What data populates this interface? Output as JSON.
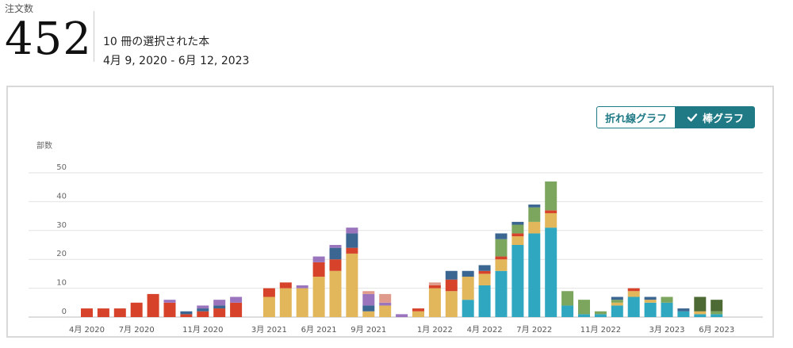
{
  "header": {
    "label": "注文数",
    "count": "452",
    "books_selected": "10 冊の選択された本",
    "date_range": "4月 9, 2020 - 6月 12, 2023"
  },
  "toggle": {
    "line_label": "折れ線グラフ",
    "bar_label": "棒グラフ",
    "selected": "bar"
  },
  "chart_data": {
    "type": "bar",
    "stacked": true,
    "ylabel": "部数",
    "ylim": [
      0,
      50
    ],
    "yticks": [
      0,
      10,
      20,
      30,
      40,
      50
    ],
    "grid": true,
    "xtick_labels": [
      "4月 2020",
      "7月 2020",
      "11月 2020",
      "3月 2021",
      "6月 2021",
      "9月 2021",
      "1月 2022",
      "4月 2022",
      "7月 2022",
      "11月 2022",
      "3月 2023",
      "6月 2023"
    ],
    "xtick_indices": [
      0,
      3,
      7,
      11,
      14,
      17,
      21,
      24,
      27,
      31,
      35,
      38
    ],
    "colors": {
      "red": "#d6432a",
      "yellow": "#e2b65a",
      "teal": "#2fa7c1",
      "blue": "#3b6691",
      "purple": "#9b74be",
      "pink": "#e09a8c",
      "green": "#7ca55d",
      "dgreen": "#4e6a34"
    },
    "months": [
      [
        [
          "red",
          3
        ]
      ],
      [
        [
          "red",
          3
        ]
      ],
      [
        [
          "red",
          3
        ]
      ],
      [
        [
          "red",
          5
        ]
      ],
      [
        [
          "red",
          8
        ]
      ],
      [
        [
          "red",
          5
        ],
        [
          "purple",
          1
        ]
      ],
      [
        [
          "red",
          1
        ],
        [
          "blue",
          1
        ]
      ],
      [
        [
          "red",
          2
        ],
        [
          "blue",
          1
        ],
        [
          "purple",
          1
        ]
      ],
      [
        [
          "red",
          3
        ],
        [
          "blue",
          1
        ],
        [
          "purple",
          2
        ]
      ],
      [
        [
          "red",
          5
        ],
        [
          "purple",
          2
        ]
      ],
      [],
      [
        [
          "yellow",
          7
        ],
        [
          "red",
          3
        ]
      ],
      [
        [
          "yellow",
          10
        ],
        [
          "red",
          2
        ]
      ],
      [
        [
          "yellow",
          10
        ],
        [
          "purple",
          1
        ]
      ],
      [
        [
          "yellow",
          14
        ],
        [
          "red",
          5
        ],
        [
          "purple",
          2
        ]
      ],
      [
        [
          "yellow",
          16
        ],
        [
          "red",
          4
        ],
        [
          "blue",
          4
        ],
        [
          "purple",
          1
        ]
      ],
      [
        [
          "yellow",
          22
        ],
        [
          "red",
          2
        ],
        [
          "blue",
          5
        ],
        [
          "purple",
          2
        ]
      ],
      [
        [
          "yellow",
          2
        ],
        [
          "blue",
          2
        ],
        [
          "purple",
          4
        ],
        [
          "pink",
          1
        ]
      ],
      [
        [
          "yellow",
          4
        ],
        [
          "purple",
          1
        ],
        [
          "pink",
          3
        ]
      ],
      [
        [
          "purple",
          1
        ]
      ],
      [
        [
          "yellow",
          2
        ],
        [
          "red",
          1
        ]
      ],
      [
        [
          "yellow",
          10
        ],
        [
          "red",
          1
        ],
        [
          "pink",
          1
        ]
      ],
      [
        [
          "yellow",
          9
        ],
        [
          "red",
          4
        ],
        [
          "blue",
          3
        ]
      ],
      [
        [
          "teal",
          6
        ],
        [
          "yellow",
          8
        ],
        [
          "blue",
          2
        ]
      ],
      [
        [
          "teal",
          11
        ],
        [
          "yellow",
          4
        ],
        [
          "red",
          1
        ],
        [
          "blue",
          2
        ]
      ],
      [
        [
          "teal",
          16
        ],
        [
          "yellow",
          4
        ],
        [
          "red",
          1
        ],
        [
          "green",
          6
        ],
        [
          "blue",
          2
        ]
      ],
      [
        [
          "teal",
          25
        ],
        [
          "yellow",
          3
        ],
        [
          "red",
          1
        ],
        [
          "green",
          3
        ],
        [
          "blue",
          1
        ]
      ],
      [
        [
          "teal",
          29
        ],
        [
          "yellow",
          4
        ],
        [
          "green",
          5
        ],
        [
          "blue",
          1
        ]
      ],
      [
        [
          "teal",
          31
        ],
        [
          "yellow",
          5
        ],
        [
          "red",
          1
        ],
        [
          "green",
          10
        ]
      ],
      [
        [
          "teal",
          4
        ],
        [
          "green",
          5
        ]
      ],
      [
        [
          "teal",
          1
        ],
        [
          "green",
          5
        ]
      ],
      [
        [
          "teal",
          1
        ],
        [
          "green",
          1
        ]
      ],
      [
        [
          "teal",
          4
        ],
        [
          "yellow",
          1
        ],
        [
          "green",
          1
        ],
        [
          "blue",
          1
        ]
      ],
      [
        [
          "teal",
          7
        ],
        [
          "yellow",
          2
        ],
        [
          "red",
          1
        ]
      ],
      [
        [
          "teal",
          5
        ],
        [
          "yellow",
          1
        ],
        [
          "blue",
          1
        ]
      ],
      [
        [
          "teal",
          5
        ],
        [
          "green",
          2
        ]
      ],
      [
        [
          "teal",
          2
        ],
        [
          "blue",
          1
        ]
      ],
      [
        [
          "teal",
          1
        ],
        [
          "yellow",
          1
        ],
        [
          "dgreen",
          5
        ]
      ],
      [
        [
          "teal",
          1
        ],
        [
          "green",
          1
        ],
        [
          "dgreen",
          4
        ]
      ]
    ]
  }
}
